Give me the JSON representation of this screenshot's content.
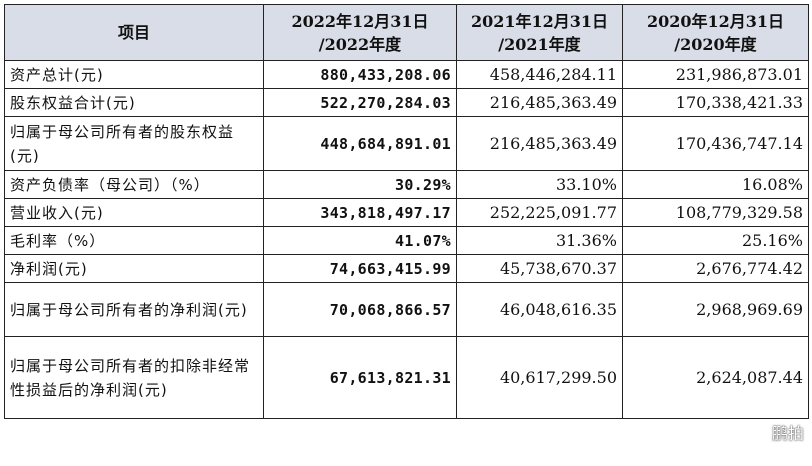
{
  "header": {
    "col_item": "项目",
    "col_2022_line1": "2022年12月31日",
    "col_2022_line2": "/2022年度",
    "col_2021_line1": "2021年12月31日",
    "col_2021_line2": "/2021年度",
    "col_2020_line1": "2020年12月31日",
    "col_2020_line2": "/2020年度"
  },
  "rows": [
    {
      "item": "资产总计(元)",
      "y2022": "880,433,208.06",
      "y2021": "458,446,284.11",
      "y2020": "231,986,873.01"
    },
    {
      "item": "股东权益合计(元)",
      "y2022": "522,270,284.03",
      "y2021": "216,485,363.49",
      "y2020": "170,338,421.33"
    },
    {
      "item": "归属于母公司所有者的股东权益(元)",
      "y2022": "448,684,891.01",
      "y2021": "216,485,363.49",
      "y2020": "170,436,747.14"
    },
    {
      "item": "资产负债率（母公司）（%）",
      "y2022": "30.29%",
      "y2021": "33.10%",
      "y2020": "16.08%"
    },
    {
      "item": "营业收入(元)",
      "y2022": "343,818,497.17",
      "y2021": "252,225,091.77",
      "y2020": "108,779,329.58"
    },
    {
      "item": "毛利率（%）",
      "y2022": "41.07%",
      "y2021": "31.36%",
      "y2020": "25.16%"
    },
    {
      "item": "净利润(元)",
      "y2022": "74,663,415.99",
      "y2021": "45,738,670.37",
      "y2020": "2,676,774.42"
    },
    {
      "item": "归属于母公司所有者的净利润(元)",
      "y2022": "70,068,866.57",
      "y2021": "46,048,616.35",
      "y2020": "2,968,969.69"
    },
    {
      "item": "归属于母公司所有者的扣除非经常性损益后的净利润(元)",
      "y2022": "67,613,821.31",
      "y2021": "40,617,299.50",
      "y2020": "2,624,087.44"
    }
  ],
  "watermark": {
    "text": "鹏拍",
    "icon": "wechat-icon"
  }
}
